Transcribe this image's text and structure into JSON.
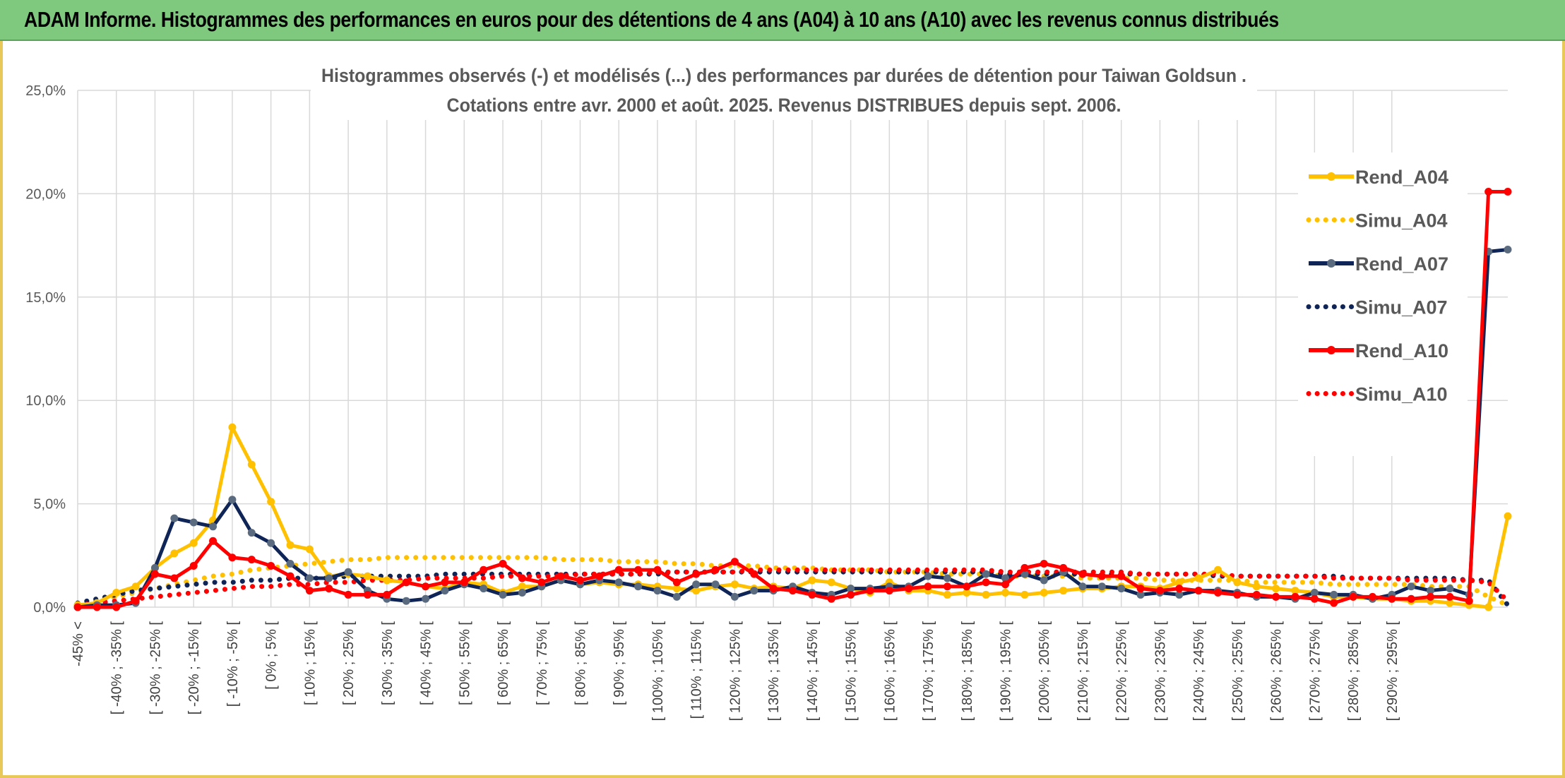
{
  "header": {
    "title": "ADAM Informe. Histogrammes des performances en euros pour des détentions de 4 ans (A04) à 10 ans (A10) avec les revenus connus distribués"
  },
  "colors": {
    "header_bg": "#7fc97f",
    "A04": "#ffc000",
    "A07": "#0f2557",
    "A07_marker": "#5b6b7f",
    "A10": "#ff0000"
  },
  "chart_data": {
    "type": "line",
    "title_line1": "Histogrammes observés (-) et modélisés (...) des performances par durées de détention pour Taiwan Goldsun .",
    "title_line2": "Cotations entre avr. 2000 et août. 2025. Revenus DISTRIBUES depuis sept. 2006.",
    "ylim": [
      0,
      25
    ],
    "yticks": [
      "0,0%",
      "5,0%",
      "10,0%",
      "15,0%",
      "20,0%",
      "25,0%"
    ],
    "grid": true,
    "legend_position": "right",
    "x_labels": [
      "-45% <",
      "[ -40% ; -35% [",
      "[ -30% ; -25% [",
      "[ -20% ; -15% [",
      "[ -10% ; -5% [",
      "[ 0% ; 5% [",
      "[ 10% ; 15% [",
      "[ 20% ; 25% [",
      "[ 30% ; 35% [",
      "[ 40% ; 45% [",
      "[ 50% ; 55% [",
      "[ 60% ; 65% [",
      "[ 70% ; 75% [",
      "[ 80% ; 85% [",
      "[ 90% ; 95% [",
      "[ 100% ; 105% [",
      "[ 110% ; 115% [",
      "[ 120% ; 125% [",
      "[ 130% ; 135% [",
      "[ 140% ; 145% [",
      "[ 150% ; 155% [",
      "[ 160% ; 165% [",
      "[ 170% ; 175% [",
      "[ 180% ; 185% [",
      "[ 190% ; 195% [",
      "[ 200% ; 205% [",
      "[ 210% ; 215% [",
      "[ 220% ; 225% [",
      "[ 230% ; 235% [",
      "[ 240% ; 245% [",
      "[ 250% ; 255% [",
      "[ 260% ; 265% [",
      "[ 270% ; 275% [",
      "[ 280% ; 285% [",
      "[ 290% ; 295% ["
    ],
    "series": [
      {
        "name": "Rend_A04",
        "color": "#ffc000",
        "style": "solid",
        "values": [
          0.1,
          0.2,
          0.7,
          1.0,
          1.9,
          2.6,
          3.1,
          4.2,
          8.7,
          6.9,
          5.1,
          3.0,
          2.8,
          1.5,
          1.6,
          1.5,
          1.3,
          1.2,
          1.0,
          0.9,
          1.2,
          1.1,
          0.7,
          1.0,
          1.0,
          1.3,
          1.1,
          1.2,
          1.1,
          1.1,
          1.0,
          0.9,
          0.8,
          1.0,
          1.1,
          0.9,
          1.0,
          0.9,
          1.3,
          1.2,
          0.9,
          0.7,
          1.2,
          0.8,
          0.8,
          0.6,
          0.7,
          0.6,
          0.7,
          0.6,
          0.7,
          0.8,
          0.9,
          0.9,
          1.0,
          1.0,
          0.9,
          1.2,
          1.4,
          1.8,
          1.2,
          1.0,
          0.9,
          0.8,
          0.7,
          0.5,
          0.5,
          0.4,
          0.4,
          0.3,
          0.3,
          0.2,
          0.1,
          0.0,
          4.4
        ]
      },
      {
        "name": "Simu_A04",
        "color": "#ffc000",
        "style": "dotted",
        "values": [
          0.1,
          0.3,
          0.5,
          0.7,
          0.9,
          1.1,
          1.3,
          1.5,
          1.6,
          1.8,
          1.9,
          2.0,
          2.1,
          2.2,
          2.3,
          2.3,
          2.4,
          2.4,
          2.4,
          2.4,
          2.4,
          2.4,
          2.4,
          2.4,
          2.4,
          2.3,
          2.3,
          2.3,
          2.2,
          2.2,
          2.2,
          2.1,
          2.1,
          2.0,
          2.0,
          2.0,
          1.9,
          1.9,
          1.9,
          1.8,
          1.8,
          1.8,
          1.7,
          1.7,
          1.7,
          1.6,
          1.6,
          1.6,
          1.5,
          1.5,
          1.5,
          1.5,
          1.4,
          1.4,
          1.4,
          1.4,
          1.3,
          1.3,
          1.3,
          1.3,
          1.3,
          1.2,
          1.2,
          1.2,
          1.2,
          1.1,
          1.1,
          1.1,
          1.1,
          1.1,
          1.0,
          1.0,
          1.0,
          0.5,
          0.1
        ]
      },
      {
        "name": "Rend_A07",
        "color": "#0f2557",
        "style": "solid",
        "values": [
          0.0,
          0.1,
          0.1,
          0.2,
          1.9,
          4.3,
          4.1,
          3.9,
          5.2,
          3.6,
          3.1,
          2.1,
          1.4,
          1.4,
          1.7,
          0.8,
          0.4,
          0.3,
          0.4,
          0.8,
          1.1,
          0.9,
          0.6,
          0.7,
          1.0,
          1.3,
          1.1,
          1.3,
          1.2,
          1.0,
          0.8,
          0.5,
          1.1,
          1.1,
          0.5,
          0.8,
          0.8,
          1.0,
          0.7,
          0.6,
          0.9,
          0.9,
          1.0,
          1.0,
          1.5,
          1.4,
          1.0,
          1.6,
          1.4,
          1.6,
          1.3,
          1.7,
          1.0,
          1.0,
          0.9,
          0.6,
          0.7,
          0.6,
          0.8,
          0.8,
          0.7,
          0.5,
          0.5,
          0.4,
          0.7,
          0.6,
          0.6,
          0.4,
          0.6,
          1.0,
          0.8,
          0.9,
          0.6,
          17.2,
          17.3
        ]
      },
      {
        "name": "Simu_A07",
        "color": "#0f2557",
        "style": "dotted",
        "values": [
          0.2,
          0.4,
          0.6,
          0.8,
          0.9,
          1.0,
          1.1,
          1.2,
          1.2,
          1.3,
          1.3,
          1.4,
          1.4,
          1.4,
          1.5,
          1.5,
          1.5,
          1.5,
          1.5,
          1.6,
          1.6,
          1.6,
          1.6,
          1.6,
          1.6,
          1.6,
          1.6,
          1.6,
          1.6,
          1.6,
          1.6,
          1.7,
          1.7,
          1.7,
          1.7,
          1.7,
          1.7,
          1.7,
          1.7,
          1.7,
          1.7,
          1.7,
          1.7,
          1.7,
          1.7,
          1.7,
          1.7,
          1.7,
          1.6,
          1.6,
          1.6,
          1.6,
          1.6,
          1.6,
          1.6,
          1.6,
          1.6,
          1.6,
          1.6,
          1.5,
          1.5,
          1.5,
          1.5,
          1.5,
          1.5,
          1.5,
          1.4,
          1.4,
          1.4,
          1.4,
          1.4,
          1.4,
          1.3,
          1.3,
          0.1
        ]
      },
      {
        "name": "Rend_A10",
        "color": "#ff0000",
        "style": "solid",
        "values": [
          0.0,
          0.0,
          0.0,
          0.3,
          1.6,
          1.4,
          2.0,
          3.2,
          2.4,
          2.3,
          2.0,
          1.5,
          0.8,
          0.9,
          0.6,
          0.6,
          0.6,
          1.2,
          1.0,
          1.2,
          1.2,
          1.8,
          2.1,
          1.4,
          1.2,
          1.5,
          1.3,
          1.5,
          1.8,
          1.8,
          1.8,
          1.2,
          1.6,
          1.8,
          2.2,
          1.6,
          0.9,
          0.8,
          0.6,
          0.4,
          0.6,
          0.8,
          0.8,
          0.9,
          1.0,
          1.0,
          1.0,
          1.2,
          1.1,
          1.9,
          2.1,
          1.9,
          1.6,
          1.5,
          1.5,
          0.9,
          0.8,
          0.9,
          0.8,
          0.7,
          0.6,
          0.6,
          0.5,
          0.5,
          0.4,
          0.2,
          0.5,
          0.5,
          0.4,
          0.4,
          0.5,
          0.5,
          0.3,
          20.1,
          20.1
        ]
      },
      {
        "name": "Simu_A10",
        "color": "#ff0000",
        "style": "dotted",
        "values": [
          0.1,
          0.2,
          0.3,
          0.4,
          0.5,
          0.6,
          0.7,
          0.8,
          0.9,
          1.0,
          1.0,
          1.1,
          1.1,
          1.2,
          1.2,
          1.3,
          1.3,
          1.3,
          1.4,
          1.4,
          1.4,
          1.4,
          1.5,
          1.5,
          1.5,
          1.5,
          1.6,
          1.6,
          1.6,
          1.6,
          1.7,
          1.7,
          1.7,
          1.7,
          1.7,
          1.8,
          1.8,
          1.8,
          1.8,
          1.8,
          1.8,
          1.8,
          1.8,
          1.8,
          1.8,
          1.8,
          1.8,
          1.8,
          1.7,
          1.7,
          1.7,
          1.7,
          1.7,
          1.7,
          1.7,
          1.6,
          1.6,
          1.6,
          1.6,
          1.6,
          1.5,
          1.5,
          1.5,
          1.5,
          1.5,
          1.4,
          1.4,
          1.4,
          1.4,
          1.3,
          1.3,
          1.3,
          1.3,
          1.2,
          0.3
        ]
      }
    ]
  }
}
